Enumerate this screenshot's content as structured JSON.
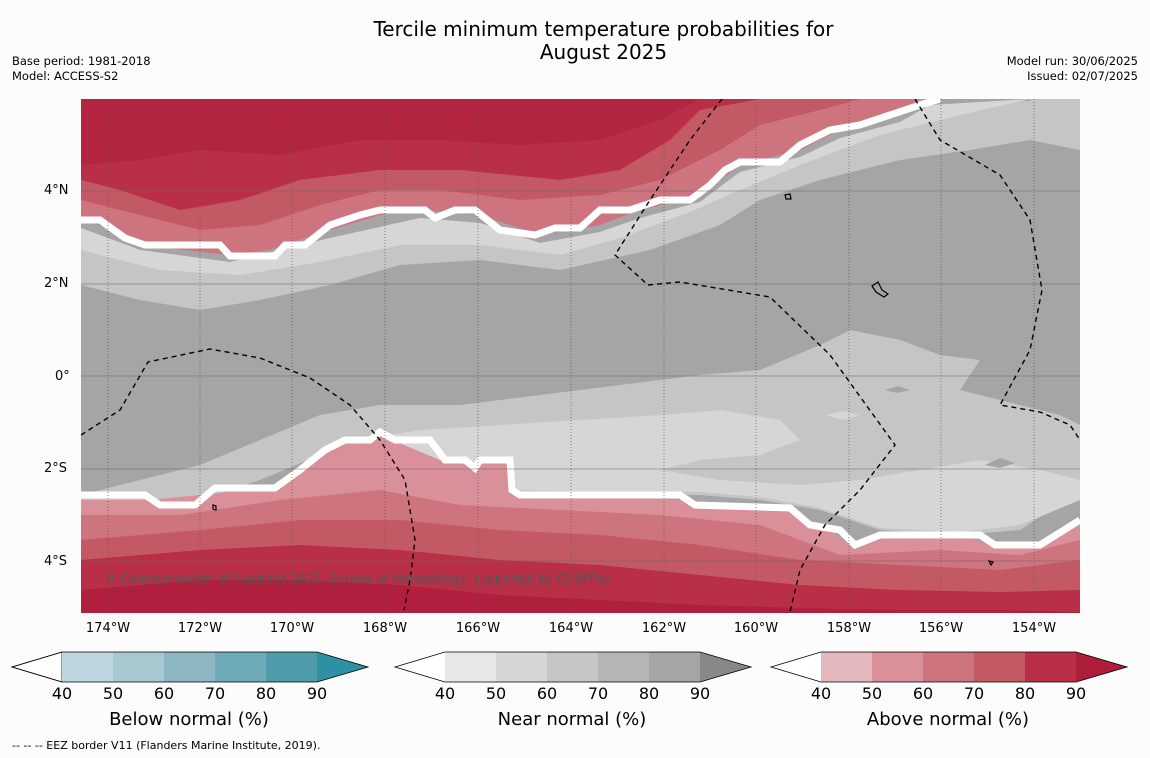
{
  "title_line1": "Tercile minimum temperature probabilities for",
  "title_line2": "August 2025",
  "base_period": "Base period: 1981-2018",
  "model": "Model: ACCESS-S2",
  "model_run": "Model run: 30/06/2025",
  "issued": "Issued: 02/07/2025",
  "lat_labels": [
    "4°N",
    "2°N",
    "0°",
    "2°S",
    "4°S"
  ],
  "lon_labels": [
    "174°W",
    "172°W",
    "170°W",
    "168°W",
    "166°W",
    "164°W",
    "162°W",
    "160°W",
    "158°W",
    "156°W",
    "154°W"
  ],
  "copyright": "© Commonwealth of Australia 2025, Bureau of Meteorology, supported by COSPPac",
  "legend": {
    "below": {
      "title": "Below normal (%)",
      "colors": [
        "#bed6dd",
        "#a8c8cf",
        "#8bb6c2",
        "#6eaab8",
        "#4e9bab",
        "#2e90a3"
      ]
    },
    "near": {
      "title": "Near normal (%)",
      "colors": [
        "#e7e7e7",
        "#d6d6d6",
        "#c5c5c5",
        "#b5b5b5",
        "#a5a5a5",
        "#888888"
      ]
    },
    "above": {
      "title": "Above normal (%)",
      "colors": [
        "#e5b8be",
        "#d99099",
        "#ce747f",
        "#c45966",
        "#ba2f48",
        "#ae1d3a"
      ]
    },
    "ticks": [
      "40",
      "50",
      "60",
      "70",
      "80",
      "90"
    ]
  },
  "footnote": "-- -- -- EEZ border V11 (Flanders Marine Institute, 2019)."
}
